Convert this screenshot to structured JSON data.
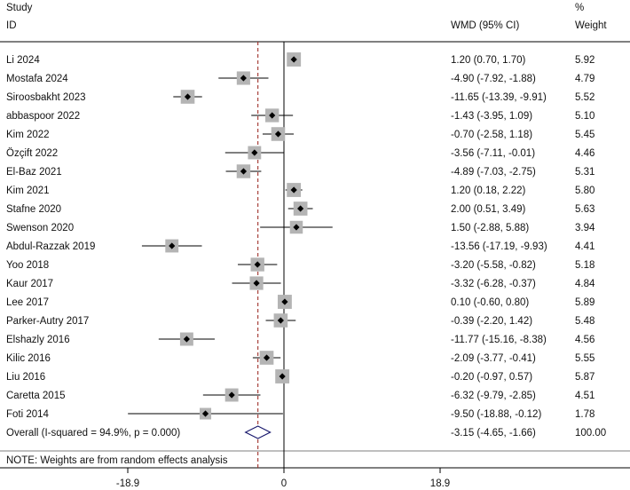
{
  "chart_data": {
    "type": "forest",
    "header": {
      "study_line1": "Study",
      "study_line2": "ID",
      "effect_label": "WMD (95% CI)",
      "weight_line1": "%",
      "weight_line2": "Weight"
    },
    "studies": [
      {
        "id": "Li 2024",
        "est": 1.2,
        "lo": 0.7,
        "hi": 1.7,
        "ci_text": "1.20 (0.70, 1.70)",
        "weight": 5.92,
        "weight_text": "5.92"
      },
      {
        "id": "Mostafa 2024",
        "est": -4.9,
        "lo": -7.92,
        "hi": -1.88,
        "ci_text": "-4.90 (-7.92, -1.88)",
        "weight": 4.79,
        "weight_text": "4.79"
      },
      {
        "id": "Siroosbakht 2023",
        "est": -11.65,
        "lo": -13.39,
        "hi": -9.91,
        "ci_text": "-11.65 (-13.39, -9.91)",
        "weight": 5.52,
        "weight_text": "5.52"
      },
      {
        "id": "abbaspoor 2022",
        "est": -1.43,
        "lo": -3.95,
        "hi": 1.09,
        "ci_text": "-1.43 (-3.95, 1.09)",
        "weight": 5.1,
        "weight_text": "5.10"
      },
      {
        "id": "Kim 2022",
        "est": -0.7,
        "lo": -2.58,
        "hi": 1.18,
        "ci_text": "-0.70 (-2.58, 1.18)",
        "weight": 5.45,
        "weight_text": "5.45"
      },
      {
        "id": "Özçift 2022",
        "est": -3.56,
        "lo": -7.11,
        "hi": -0.01,
        "ci_text": "-3.56 (-7.11, -0.01)",
        "weight": 4.46,
        "weight_text": "4.46"
      },
      {
        "id": "El-Baz 2021",
        "est": -4.89,
        "lo": -7.03,
        "hi": -2.75,
        "ci_text": "-4.89 (-7.03, -2.75)",
        "weight": 5.31,
        "weight_text": "5.31"
      },
      {
        "id": "Kim 2021",
        "est": 1.2,
        "lo": 0.18,
        "hi": 2.22,
        "ci_text": "1.20 (0.18, 2.22)",
        "weight": 5.8,
        "weight_text": "5.80"
      },
      {
        "id": "Stafne 2020",
        "est": 2.0,
        "lo": 0.51,
        "hi": 3.49,
        "ci_text": "2.00 (0.51, 3.49)",
        "weight": 5.63,
        "weight_text": "5.63"
      },
      {
        "id": "Swenson 2020",
        "est": 1.5,
        "lo": -2.88,
        "hi": 5.88,
        "ci_text": "1.50 (-2.88, 5.88)",
        "weight": 3.94,
        "weight_text": "3.94"
      },
      {
        "id": "Abdul-Razzak 2019",
        "est": -13.56,
        "lo": -17.19,
        "hi": -9.93,
        "ci_text": "-13.56 (-17.19, -9.93)",
        "weight": 4.41,
        "weight_text": "4.41"
      },
      {
        "id": "Yoo 2018",
        "est": -3.2,
        "lo": -5.58,
        "hi": -0.82,
        "ci_text": "-3.20 (-5.58, -0.82)",
        "weight": 5.18,
        "weight_text": "5.18"
      },
      {
        "id": "Kaur 2017",
        "est": -3.32,
        "lo": -6.28,
        "hi": -0.37,
        "ci_text": "-3.32 (-6.28, -0.37)",
        "weight": 4.84,
        "weight_text": "4.84"
      },
      {
        "id": "Lee 2017",
        "est": 0.1,
        "lo": -0.6,
        "hi": 0.8,
        "ci_text": "0.10 (-0.60, 0.80)",
        "weight": 5.89,
        "weight_text": "5.89"
      },
      {
        "id": "Parker-Autry 2017",
        "est": -0.39,
        "lo": -2.2,
        "hi": 1.42,
        "ci_text": "-0.39 (-2.20, 1.42)",
        "weight": 5.48,
        "weight_text": "5.48"
      },
      {
        "id": "Elshazly 2016",
        "est": -11.77,
        "lo": -15.16,
        "hi": -8.38,
        "ci_text": "-11.77 (-15.16, -8.38)",
        "weight": 4.56,
        "weight_text": "4.56"
      },
      {
        "id": "Kilic 2016",
        "est": -2.09,
        "lo": -3.77,
        "hi": -0.41,
        "ci_text": "-2.09 (-3.77, -0.41)",
        "weight": 5.55,
        "weight_text": "5.55"
      },
      {
        "id": "Liu 2016",
        "est": -0.2,
        "lo": -0.97,
        "hi": 0.57,
        "ci_text": "-0.20 (-0.97, 0.57)",
        "weight": 5.87,
        "weight_text": "5.87"
      },
      {
        "id": "Caretta 2015",
        "est": -6.32,
        "lo": -9.79,
        "hi": -2.85,
        "ci_text": "-6.32 (-9.79, -2.85)",
        "weight": 4.51,
        "weight_text": "4.51"
      },
      {
        "id": "Foti 2014",
        "est": -9.5,
        "lo": -18.88,
        "hi": -0.12,
        "ci_text": "-9.50 (-18.88, -0.12)",
        "weight": 1.78,
        "weight_text": "1.78"
      }
    ],
    "overall": {
      "label": "Overall  (I-squared = 94.9%, p = 0.000)",
      "est": -3.15,
      "lo": -4.65,
      "hi": -1.66,
      "ci_text": "-3.15 (-4.65, -1.66)",
      "weight_text": "100.00"
    },
    "note": "NOTE: Weights are from random effects analysis",
    "x_ticks": [
      {
        "value": -18.9,
        "label": "-18.9"
      },
      {
        "value": 0,
        "label": "0"
      },
      {
        "value": 18.9,
        "label": "18.9"
      }
    ],
    "null_value": 0,
    "colors": {
      "marker_box": "#b4b4b4",
      "diamond": "#1a1a6e",
      "overall_line": "#a0302a",
      "ink": "#000000"
    }
  }
}
